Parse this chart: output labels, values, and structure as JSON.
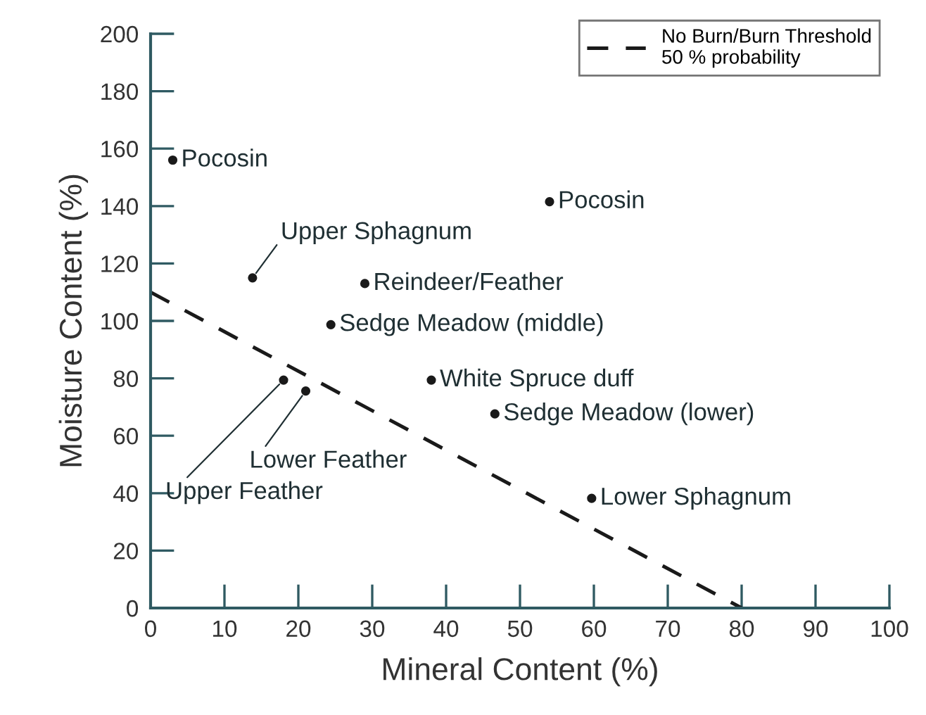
{
  "chart_data": {
    "type": "scatter",
    "xlabel": "Mineral Content (%)",
    "ylabel": "Moisture Content (%)",
    "xlim": [
      0,
      100
    ],
    "ylim": [
      0,
      200
    ],
    "xticks": [
      0,
      10,
      20,
      30,
      40,
      50,
      60,
      70,
      80,
      90,
      100
    ],
    "yticks": [
      0,
      20,
      40,
      60,
      80,
      100,
      120,
      140,
      160,
      180,
      200
    ],
    "grid": false,
    "legend": "top right",
    "marker": "circle",
    "series": [
      {
        "color": "#1a1a1a",
        "x": [
          3.0,
          13.8,
          29.0,
          24.4,
          18.0,
          21.0,
          38.0,
          54.0,
          46.6,
          59.7
        ],
        "values": [
          156,
          115,
          113,
          98.7,
          79.4,
          75.6,
          79.4,
          141.5,
          67.6,
          38.2
        ]
      },
      {
        "type": "line",
        "name": "No Burn/Burn Threshold\n50 % probability",
        "color": "#1a1a1a",
        "line_style": "dashed",
        "marker": "none",
        "x": [
          0,
          80
        ],
        "values": [
          110,
          0
        ]
      }
    ],
    "annotations": [
      {
        "text": "Pocosin",
        "x": 3.0,
        "y": 156
      },
      {
        "text": "Upper Sphagnum",
        "x": 13.8,
        "y": 115
      },
      {
        "text": "Reindeer/Feather",
        "x": 29.0,
        "y": 113
      },
      {
        "text": "Sedge Meadow (middle)",
        "x": 24.4,
        "y": 98.7
      },
      {
        "text": "Upper Feather",
        "x": 18.0,
        "y": 79.4
      },
      {
        "text": "Lower Feather",
        "x": 21.0,
        "y": 75.6
      },
      {
        "text": "White Spruce duff",
        "x": 38.0,
        "y": 79.4
      },
      {
        "text": "Pocosin",
        "x": 54.0,
        "y": 141.5
      },
      {
        "text": "Sedge Meadow (lower)",
        "x": 46.6,
        "y": 67.6
      },
      {
        "text": "Lower Sphagnum",
        "x": 59.7,
        "y": 38.2
      }
    ]
  }
}
